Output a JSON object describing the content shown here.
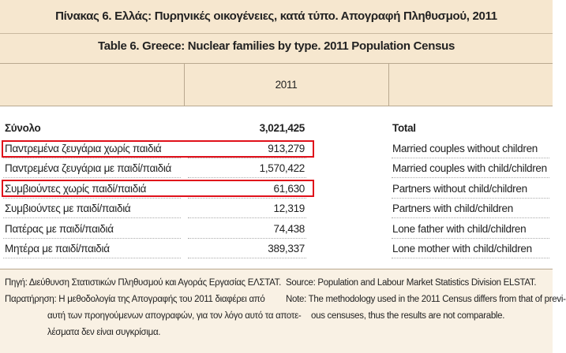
{
  "header": {
    "title_gr": "Πίνακας 6. Ελλάς: Πυρηνικές οικογένειες, κατά τύπο. Απογραφή Πληθυσμού, 2011",
    "title_en": "Table 6. Greece: Nuclear families by type. 2011 Population Census"
  },
  "table": {
    "column_header": "2011",
    "rows": [
      [
        "Σύνολο",
        "3,021,425",
        "Total"
      ],
      [
        "Παντρεμένα ζευγάρια χωρίς παιδιά",
        "913,279",
        "Married couples without children"
      ],
      [
        "Παντρεμένα ζευγάρια με παιδί/παιδιά",
        "1,570,422",
        "Married couples with child/children"
      ],
      [
        "Συμβιούντες χωρίς παιδί/παιδιά",
        "61,630",
        "Partners without child/children"
      ],
      [
        "Συμβιούντες με παιδί/παιδιά",
        "12,319",
        "Partners with child/children"
      ],
      [
        "Πατέρας με παιδί/παιδιά",
        "74,438",
        "Lone father with child/children"
      ],
      [
        "Μητέρα με παιδί/παιδιά",
        "389,337",
        "Lone mother with child/children"
      ]
    ]
  },
  "footer": {
    "left": [
      "Πηγή: Διεύθυνση Στατιστικών Πληθυσμού και Αγοράς Εργασίας ΕΛΣΤΑΤ.",
      "Παρατήρηση: Η μεθοδολογία της Απογραφής του 2011 διαφέρει από",
      "αυτή των προηγούμενων απογραφών, για τον λόγο αυτό τα αποτε-",
      "λέσματα δεν είναι συγκρίσιμα."
    ],
    "right": [
      "Source: Population and Labour Market Statistics Division ELSTAT.",
      "Note: The methodology used in the 2011 Census differs from that of previ-",
      "ous censuses, thus the results are not comparable."
    ]
  }
}
